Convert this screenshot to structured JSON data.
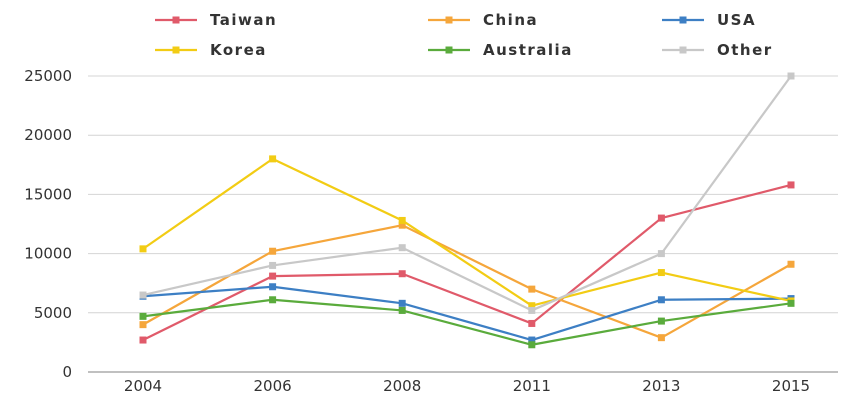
{
  "chart_data": {
    "type": "line",
    "categories": [
      "2004",
      "2006",
      "2008",
      "2011",
      "2013",
      "2015"
    ],
    "ylim": [
      0,
      25000
    ],
    "yticks": [
      0,
      5000,
      10000,
      15000,
      20000,
      25000
    ],
    "grid": "horizontal",
    "legend_position": "top",
    "series": [
      {
        "name": "Taiwan",
        "color": "#e05a6a",
        "values": [
          2700,
          8100,
          8300,
          4100,
          13000,
          15800
        ]
      },
      {
        "name": "China",
        "color": "#f5a63b",
        "values": [
          4000,
          10200,
          12400,
          7000,
          2900,
          9100
        ]
      },
      {
        "name": "USA",
        "color": "#3d7fc4",
        "values": [
          6400,
          7200,
          5800,
          2700,
          6100,
          6200
        ]
      },
      {
        "name": "Korea",
        "color": "#f2cc14",
        "values": [
          10400,
          18000,
          12800,
          5600,
          8400,
          6000
        ]
      },
      {
        "name": "Australia",
        "color": "#5aab3c",
        "values": [
          4700,
          6100,
          5200,
          2300,
          4300,
          5800
        ]
      },
      {
        "name": "Other",
        "color": "#c8c8c8",
        "values": [
          6500,
          9000,
          10500,
          5200,
          10000,
          25000
        ]
      }
    ]
  }
}
